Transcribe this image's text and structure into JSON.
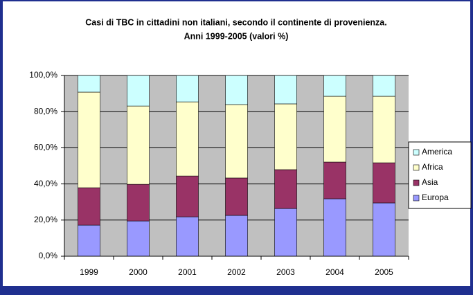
{
  "chart_data": {
    "type": "stacked_bar",
    "title": [
      "Casi di TBC in cittadini non italiani, secondo il continente di provenienza.",
      "Anni 1999-2005 (valori %)"
    ],
    "categories": [
      "1999",
      "2000",
      "2001",
      "2002",
      "2003",
      "2004",
      "2005"
    ],
    "series": [
      {
        "name": "Europa",
        "color": "#9999ff",
        "values": [
          17.2,
          19.5,
          21.8,
          22.6,
          26.4,
          31.8,
          29.5
        ]
      },
      {
        "name": "Asia",
        "color": "#993366",
        "values": [
          20.7,
          20.3,
          22.6,
          20.7,
          21.5,
          20.3,
          22.2
        ]
      },
      {
        "name": "Africa",
        "color": "#ffffcc",
        "values": [
          52.9,
          43.3,
          41.0,
          40.6,
          36.4,
          36.4,
          36.8
        ]
      },
      {
        "name": "America",
        "color": "#ccffff",
        "values": [
          9.2,
          16.9,
          14.6,
          16.1,
          15.7,
          11.5,
          11.5
        ]
      }
    ],
    "ylim": [
      0,
      100
    ],
    "yticks": [
      {
        "value": 0,
        "label": "0,0%"
      },
      {
        "value": 20,
        "label": "20,0%"
      },
      {
        "value": 40,
        "label": "40,0%"
      },
      {
        "value": 60,
        "label": "60,0%"
      },
      {
        "value": 80,
        "label": "80,0%"
      },
      {
        "value": 100,
        "label": "100,0%"
      }
    ],
    "grid": true,
    "legend": "right"
  }
}
